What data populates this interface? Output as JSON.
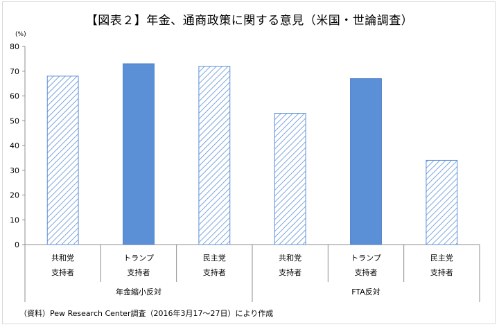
{
  "chart_data": {
    "type": "bar",
    "title": "【図表２】年金、通商政策に関する意見（米国・世論調査）",
    "unit": "(%)",
    "ylim": [
      0,
      80
    ],
    "yticks": [
      0,
      10,
      20,
      30,
      40,
      50,
      60,
      70,
      80
    ],
    "grid": false,
    "groups": [
      {
        "label": "年金縮小反対",
        "categories": [
          {
            "line1": "共和党",
            "line2": "支持者",
            "value": 68,
            "fill": "hatched"
          },
          {
            "line1": "トランプ",
            "line2": "支持者",
            "value": 73,
            "fill": "solid"
          },
          {
            "line1": "民主党",
            "line2": "支持者",
            "value": 72,
            "fill": "hatched"
          }
        ]
      },
      {
        "label": "FTA反対",
        "categories": [
          {
            "line1": "共和党",
            "line2": "支持者",
            "value": 53,
            "fill": "hatched"
          },
          {
            "line1": "トランプ",
            "line2": "支持者",
            "value": 67,
            "fill": "solid"
          },
          {
            "line1": "民主党",
            "line2": "支持者",
            "value": 34,
            "fill": "hatched"
          }
        ]
      }
    ],
    "colors": {
      "bar": "#5b8fd6",
      "bar_border": "#4a7cc7",
      "hatch": "#5b8fd6",
      "axis": "#8c8c8c"
    }
  },
  "source": "（資料）Pew Research Center調査（2016年3月17～27日）により作成"
}
